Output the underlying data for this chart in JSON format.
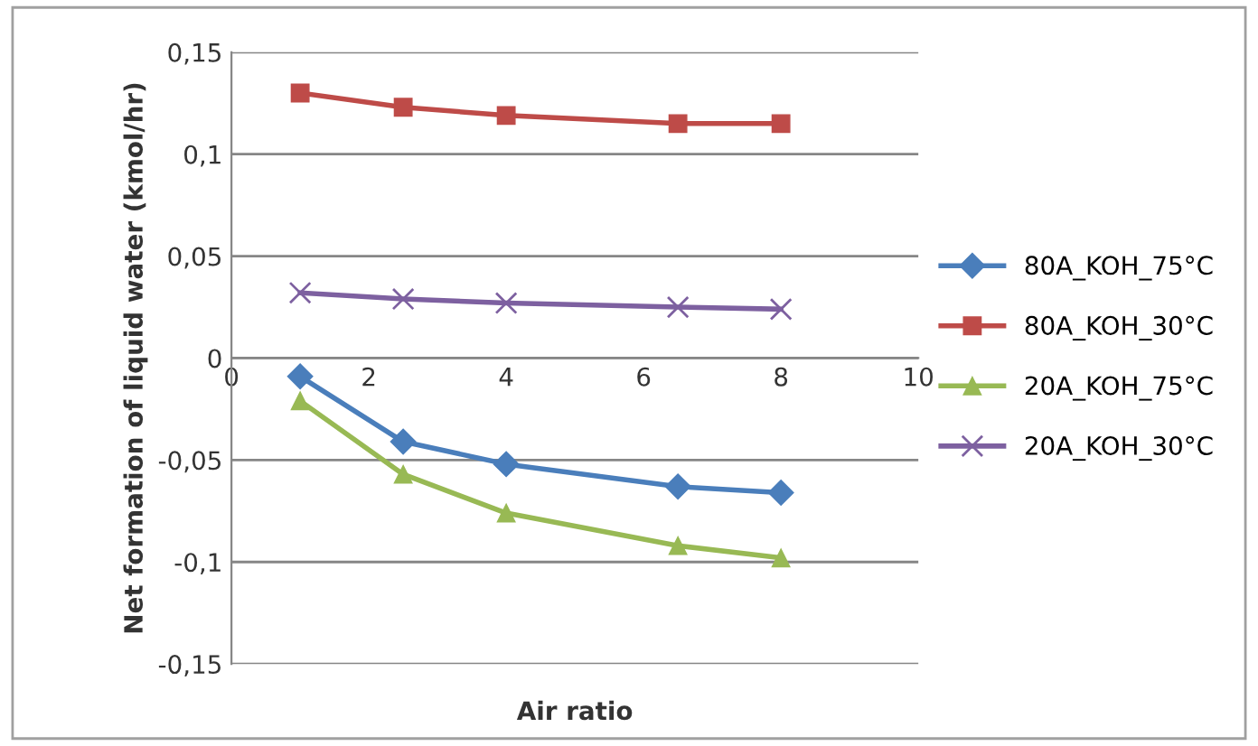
{
  "chart_data": {
    "type": "line",
    "xlabel": "Air ratio",
    "ylabel": "Net formation of liquid water (kmol/hr)",
    "x": [
      1.0,
      2.5,
      4.0,
      6.5,
      8.0
    ],
    "series": [
      {
        "name": "80A_KOH_75°C",
        "color": "#4a7ebb",
        "marker": "diamond",
        "values": [
          -0.009,
          -0.041,
          -0.052,
          -0.063,
          -0.066
        ]
      },
      {
        "name": "80A_KOH_30°C",
        "color": "#be4b48",
        "marker": "square",
        "values": [
          0.13,
          0.123,
          0.119,
          0.115,
          0.115
        ]
      },
      {
        "name": "20A_KOH_75°C",
        "color": "#98b954",
        "marker": "triangle",
        "values": [
          -0.021,
          -0.057,
          -0.076,
          -0.092,
          -0.098
        ]
      },
      {
        "name": "20A_KOH_30°C",
        "color": "#7d60a0",
        "marker": "cross",
        "values": [
          0.032,
          0.029,
          0.027,
          0.025,
          0.024
        ]
      }
    ],
    "xlim": [
      0,
      10
    ],
    "xticks": [
      0,
      2,
      4,
      6,
      8,
      10
    ],
    "ylim": [
      -0.15,
      0.15
    ],
    "yticks": [
      {
        "value": -0.15,
        "label": "-0,15"
      },
      {
        "value": -0.1,
        "label": "-0,1"
      },
      {
        "value": -0.05,
        "label": "-0,05"
      },
      0,
      {
        "value": 0.05,
        "label": "0,05"
      },
      {
        "value": 0.1,
        "label": "0,1"
      },
      {
        "value": 0.15,
        "label": "0,15"
      }
    ],
    "grid": "y",
    "legend": "right"
  }
}
